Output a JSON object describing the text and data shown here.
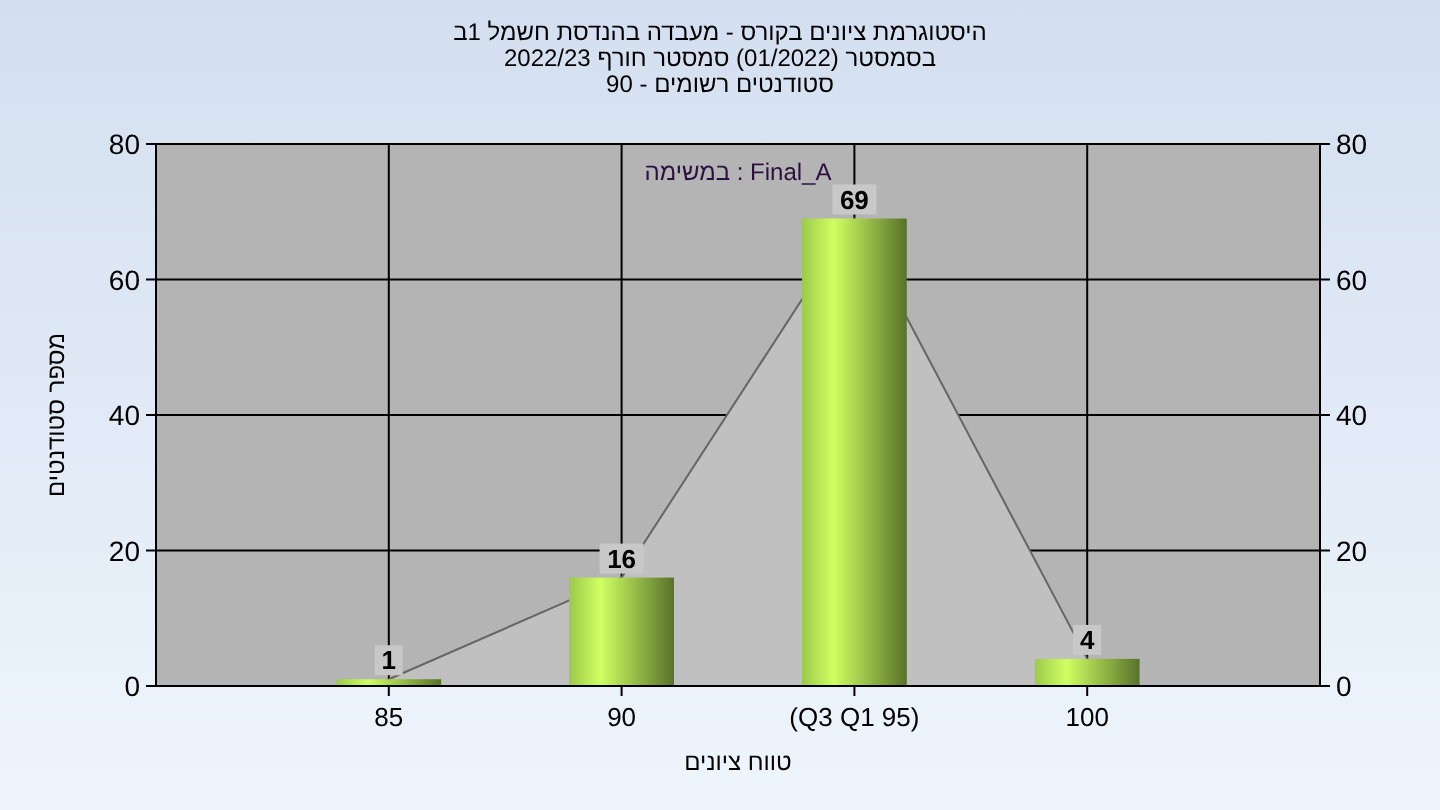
{
  "chart_data": {
    "type": "bar",
    "title": "היסטוגרמת ציונים בקורס - מעבדה בהנדסת חשמל 1ב",
    "subtitle": "בסמסטר  (01/2022)  סמסטר חורף 2022/23\nסטודנטים רשומים - 90",
    "xlabel": "טווח ציונים",
    "ylabel": "מספר סטודנטים",
    "annotations": [
      "במשימה : Final_A"
    ],
    "x": [
      85,
      90,
      95,
      100
    ],
    "xlim": [
      80,
      105
    ],
    "xticks": [
      85,
      90,
      {
        "value": 95,
        "label": "(Q3 Q1 95)"
      },
      100
    ],
    "ylim": [
      0,
      80
    ],
    "yticks": [
      0,
      20,
      40,
      60,
      80
    ],
    "y2lim": [
      0,
      80
    ],
    "y2ticks": [
      0,
      20,
      40,
      60,
      80
    ],
    "series": [
      {
        "type": "area",
        "color": "#c0c0c0",
        "values": [
          1,
          16,
          69,
          4
        ]
      },
      {
        "color": "#9cc94a",
        "values": [
          1,
          16,
          69,
          4
        ],
        "value_labels": [
          "1",
          "16",
          "69",
          "4"
        ]
      }
    ],
    "grid": true
  }
}
